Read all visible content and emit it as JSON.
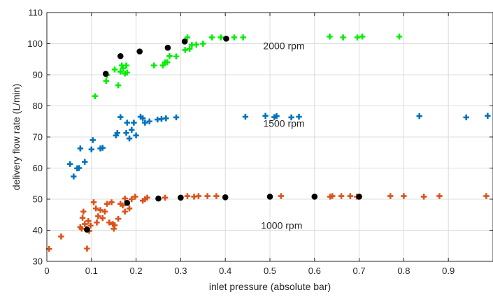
{
  "chart_data": {
    "type": "scatter",
    "xlabel": "inlet pressure (absolute bar)",
    "ylabel": "delivery flow rate (L/min)",
    "xlim": [
      0,
      1.0
    ],
    "ylim": [
      30,
      110
    ],
    "x_ticks": [
      0,
      0.1,
      0.2,
      0.3,
      0.4,
      0.5,
      0.6,
      0.7,
      0.8,
      0.9
    ],
    "x_tick_labels": [
      "0",
      "0.1",
      "0.2",
      "0.3",
      "0.4",
      "0.5",
      "0.6",
      "0.7",
      "0.8",
      "0.9"
    ],
    "y_ticks": [
      30,
      40,
      50,
      60,
      70,
      80,
      90,
      100,
      110
    ],
    "y_tick_labels": [
      "30",
      "40",
      "50",
      "60",
      "70",
      "80",
      "90",
      "100",
      "110"
    ],
    "grid": true,
    "annotations": [
      {
        "text": "2000 rpm",
        "x": 0.485,
        "y": 98.2
      },
      {
        "text": "1500 rpm",
        "x": 0.485,
        "y": 73.3
      },
      {
        "text": "1000 rpm",
        "x": 0.48,
        "y": 40.5
      }
    ],
    "series": [
      {
        "color": "#00ee00",
        "marker": "plus",
        "points": [
          [
            0.108,
            83.1
          ],
          [
            0.133,
            88.0
          ],
          [
            0.135,
            89.9
          ],
          [
            0.152,
            91.7
          ],
          [
            0.16,
            86.6
          ],
          [
            0.165,
            91.0
          ],
          [
            0.168,
            93.0
          ],
          [
            0.171,
            92.1
          ],
          [
            0.175,
            90.4
          ],
          [
            0.178,
            93.0
          ],
          [
            0.18,
            90.7
          ],
          [
            0.24,
            93.0
          ],
          [
            0.26,
            93.0
          ],
          [
            0.265,
            94.0
          ],
          [
            0.27,
            94.0
          ],
          [
            0.275,
            96.0
          ],
          [
            0.29,
            95.9
          ],
          [
            0.31,
            98.0
          ],
          [
            0.315,
            102.0
          ],
          [
            0.32,
            98.3
          ],
          [
            0.325,
            99.6
          ],
          [
            0.335,
            99.7
          ],
          [
            0.35,
            100.0
          ],
          [
            0.37,
            102.0
          ],
          [
            0.39,
            102.0
          ],
          [
            0.42,
            102.0
          ],
          [
            0.44,
            102.0
          ],
          [
            0.634,
            102.3
          ],
          [
            0.664,
            102.0
          ],
          [
            0.696,
            102.0
          ],
          [
            0.707,
            102.3
          ],
          [
            0.79,
            102.3
          ]
        ]
      },
      {
        "color": "#0072bd",
        "marker": "plus",
        "points": [
          [
            0.052,
            61.3
          ],
          [
            0.06,
            57.3
          ],
          [
            0.068,
            59.9
          ],
          [
            0.072,
            60.0
          ],
          [
            0.075,
            66.3
          ],
          [
            0.085,
            62.0
          ],
          [
            0.1,
            66.0
          ],
          [
            0.103,
            69.0
          ],
          [
            0.12,
            66.3
          ],
          [
            0.125,
            66.5
          ],
          [
            0.155,
            70.5
          ],
          [
            0.158,
            71.3
          ],
          [
            0.165,
            76.4
          ],
          [
            0.178,
            71.3
          ],
          [
            0.185,
            69.5
          ],
          [
            0.19,
            72.3
          ],
          [
            0.2,
            70.5
          ],
          [
            0.18,
            74.6
          ],
          [
            0.195,
            74.6
          ],
          [
            0.21,
            76.5
          ],
          [
            0.215,
            76.0
          ],
          [
            0.22,
            74.6
          ],
          [
            0.23,
            75.0
          ],
          [
            0.248,
            75.6
          ],
          [
            0.257,
            75.8
          ],
          [
            0.267,
            76.0
          ],
          [
            0.29,
            76.3
          ],
          [
            0.445,
            76.5
          ],
          [
            0.49,
            76.8
          ],
          [
            0.51,
            76.4
          ],
          [
            0.515,
            76.7
          ],
          [
            0.548,
            76.3
          ],
          [
            0.565,
            76.5
          ],
          [
            0.835,
            76.7
          ],
          [
            0.94,
            76.3
          ],
          [
            0.988,
            76.8
          ]
        ]
      },
      {
        "color": "#d95319",
        "marker": "plus",
        "points": [
          [
            0.005,
            34.0
          ],
          [
            0.032,
            38.0
          ],
          [
            0.075,
            41.0
          ],
          [
            0.078,
            40.5
          ],
          [
            0.08,
            44.0
          ],
          [
            0.082,
            46.0
          ],
          [
            0.085,
            42.0
          ],
          [
            0.088,
            40.5
          ],
          [
            0.09,
            34.1
          ],
          [
            0.093,
            43.0
          ],
          [
            0.095,
            39.8
          ],
          [
            0.098,
            41.5
          ],
          [
            0.105,
            49.0
          ],
          [
            0.11,
            47.0
          ],
          [
            0.112,
            42.5
          ],
          [
            0.115,
            44.5
          ],
          [
            0.12,
            46.5
          ],
          [
            0.125,
            43.9
          ],
          [
            0.13,
            46.0
          ],
          [
            0.135,
            48.5
          ],
          [
            0.14,
            42.5
          ],
          [
            0.145,
            49.0
          ],
          [
            0.148,
            42.0
          ],
          [
            0.15,
            40.5
          ],
          [
            0.152,
            41.6
          ],
          [
            0.16,
            43.7
          ],
          [
            0.165,
            48.5
          ],
          [
            0.17,
            48.0
          ],
          [
            0.175,
            50.2
          ],
          [
            0.175,
            46.0
          ],
          [
            0.185,
            47.0
          ],
          [
            0.19,
            50.0
          ],
          [
            0.198,
            50.8
          ],
          [
            0.215,
            49.5
          ],
          [
            0.22,
            50.0
          ],
          [
            0.225,
            50.5
          ],
          [
            0.265,
            50.5
          ],
          [
            0.315,
            51.0
          ],
          [
            0.33,
            50.8
          ],
          [
            0.34,
            51.0
          ],
          [
            0.36,
            51.0
          ],
          [
            0.38,
            51.0
          ],
          [
            0.525,
            51.0
          ],
          [
            0.635,
            50.8
          ],
          [
            0.64,
            51.0
          ],
          [
            0.66,
            51.0
          ],
          [
            0.68,
            51.0
          ],
          [
            0.695,
            50.8
          ],
          [
            0.77,
            51.0
          ],
          [
            0.8,
            51.0
          ],
          [
            0.845,
            50.8
          ],
          [
            0.88,
            51.0
          ],
          [
            0.985,
            51.0
          ]
        ]
      },
      {
        "color": "#000000",
        "marker": "circle",
        "points": [
          [
            0.132,
            90.3
          ],
          [
            0.165,
            96.0
          ],
          [
            0.208,
            97.5
          ],
          [
            0.271,
            98.7
          ],
          [
            0.309,
            100.7
          ],
          [
            0.402,
            101.6
          ],
          [
            0.09,
            40.2
          ],
          [
            0.18,
            48.8
          ],
          [
            0.25,
            50.2
          ],
          [
            0.3,
            50.5
          ],
          [
            0.4,
            50.6
          ],
          [
            0.5,
            50.8
          ],
          [
            0.6,
            50.8
          ],
          [
            0.7,
            50.8
          ]
        ]
      }
    ]
  }
}
